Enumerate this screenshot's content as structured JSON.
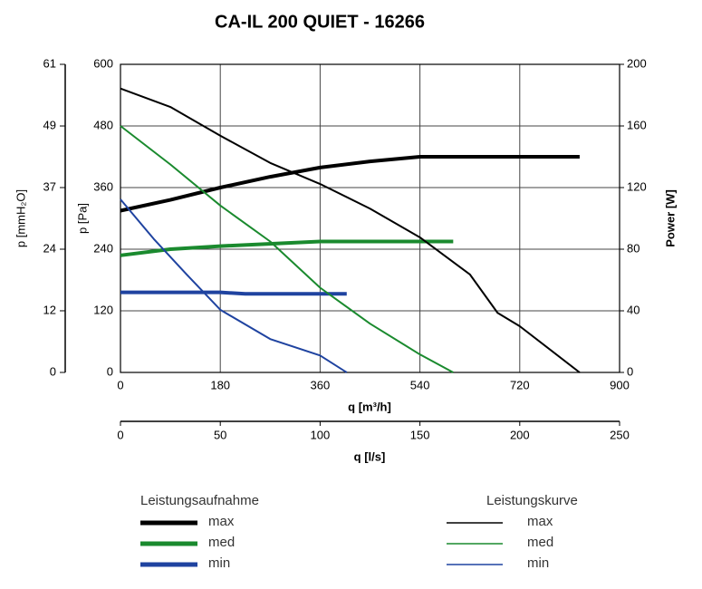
{
  "chart_data": {
    "type": "line",
    "title": "CA-IL 200 QUIET - 16266",
    "xlabel": "q [m³/h]",
    "xlim": [
      0,
      900
    ],
    "xticks": [
      0,
      180,
      360,
      540,
      720,
      900
    ],
    "x2label": "q [l/s]",
    "x2lim": [
      0,
      250
    ],
    "x2ticks": [
      0,
      50,
      100,
      150,
      200,
      250
    ],
    "ylabel": "p [Pa]",
    "ylim": [
      0,
      600
    ],
    "yticks": [
      0,
      120,
      240,
      360,
      480,
      600
    ],
    "y2label": "Power [W]",
    "y2lim": [
      0,
      200
    ],
    "y2ticks": [
      0,
      40,
      80,
      120,
      160,
      200
    ],
    "y3label": "p [mmH₂O]",
    "y3lim": [
      0,
      61.18
    ],
    "y3ticks": [
      0,
      {
        "value": 12.24,
        "label": "12"
      },
      {
        "value": 24.47,
        "label": "24"
      },
      {
        "value": 36.71,
        "label": "37"
      },
      {
        "value": 48.94,
        "label": "49"
      },
      {
        "value": 61.18,
        "label": "61"
      }
    ],
    "grid": true,
    "legend_titles": [
      "Leistungsaufnahme",
      "Leistungskurve"
    ],
    "series": [
      {
        "name": "max",
        "color": "#000000",
        "axis": "y2",
        "x": [
          0,
          90,
          180,
          270,
          360,
          450,
          540,
          828
        ],
        "values": [
          105,
          112,
          120,
          127,
          133,
          137,
          140,
          140
        ]
      },
      {
        "name": "med",
        "color": "#1a8a2e",
        "axis": "y2",
        "x": [
          0,
          90,
          180,
          360,
          600
        ],
        "values": [
          76,
          80,
          82,
          85,
          85
        ]
      },
      {
        "name": "min",
        "color": "#1f43a0",
        "axis": "y2",
        "x": [
          0,
          180,
          225,
          408
        ],
        "values": [
          52,
          52,
          51,
          51
        ]
      },
      {
        "name": "max",
        "color": "#000000",
        "axis": "y",
        "x": [
          0,
          90,
          180,
          270,
          360,
          450,
          540,
          630,
          680,
          720,
          828
        ],
        "values": [
          553,
          517,
          461,
          408,
          367,
          319,
          263,
          191,
          116,
          90,
          0
        ]
      },
      {
        "name": "med",
        "color": "#1a8a2e",
        "axis": "y",
        "x": [
          0,
          90,
          180,
          270,
          360,
          450,
          540,
          600
        ],
        "values": [
          480,
          405,
          325,
          255,
          165,
          95,
          35,
          0
        ]
      },
      {
        "name": "min",
        "color": "#1f43a0",
        "axis": "y",
        "x": [
          0,
          60,
          120,
          180,
          270,
          360,
          408
        ],
        "values": [
          337,
          260,
          190,
          122,
          65,
          33,
          0
        ]
      }
    ]
  }
}
